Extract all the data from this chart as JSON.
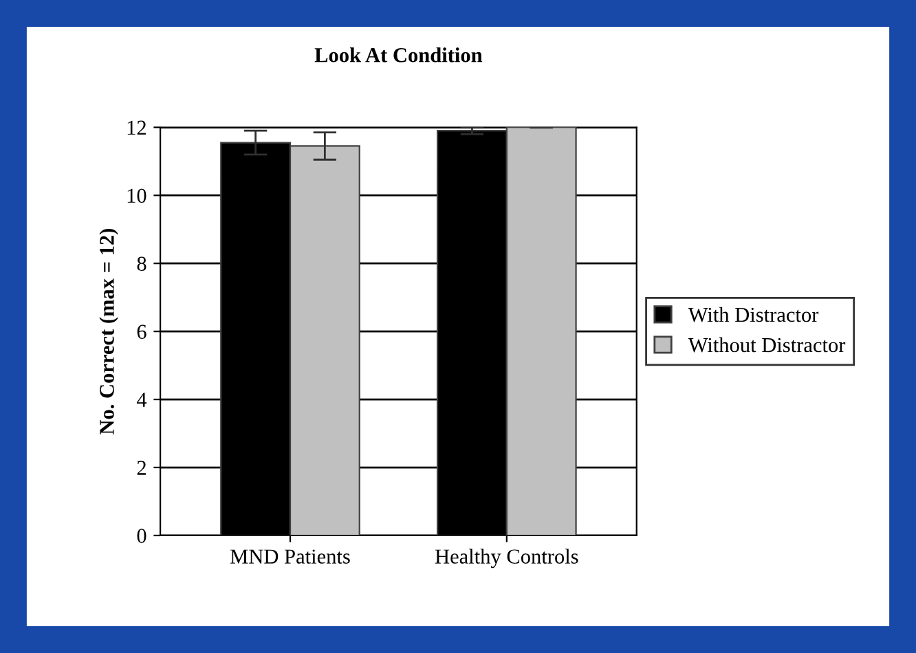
{
  "chart_data": {
    "type": "bar",
    "title": "Look At Condition",
    "ylabel": "No. Correct (max = 12)",
    "categories": [
      "MND Patients",
      "Healthy Controls"
    ],
    "series": [
      {
        "name": "With Distractor",
        "color": "#000000",
        "values": [
          11.55,
          11.9
        ],
        "errors": [
          0.35,
          0.1
        ]
      },
      {
        "name": "Without Distractor",
        "color": "#c0c0c0",
        "values": [
          11.45,
          12
        ],
        "errors": [
          0.4,
          0
        ]
      }
    ],
    "ylim": [
      0,
      12
    ],
    "yticks": [
      0,
      2,
      4,
      6,
      8,
      10,
      12
    ],
    "grid": "y",
    "legend": "right"
  }
}
